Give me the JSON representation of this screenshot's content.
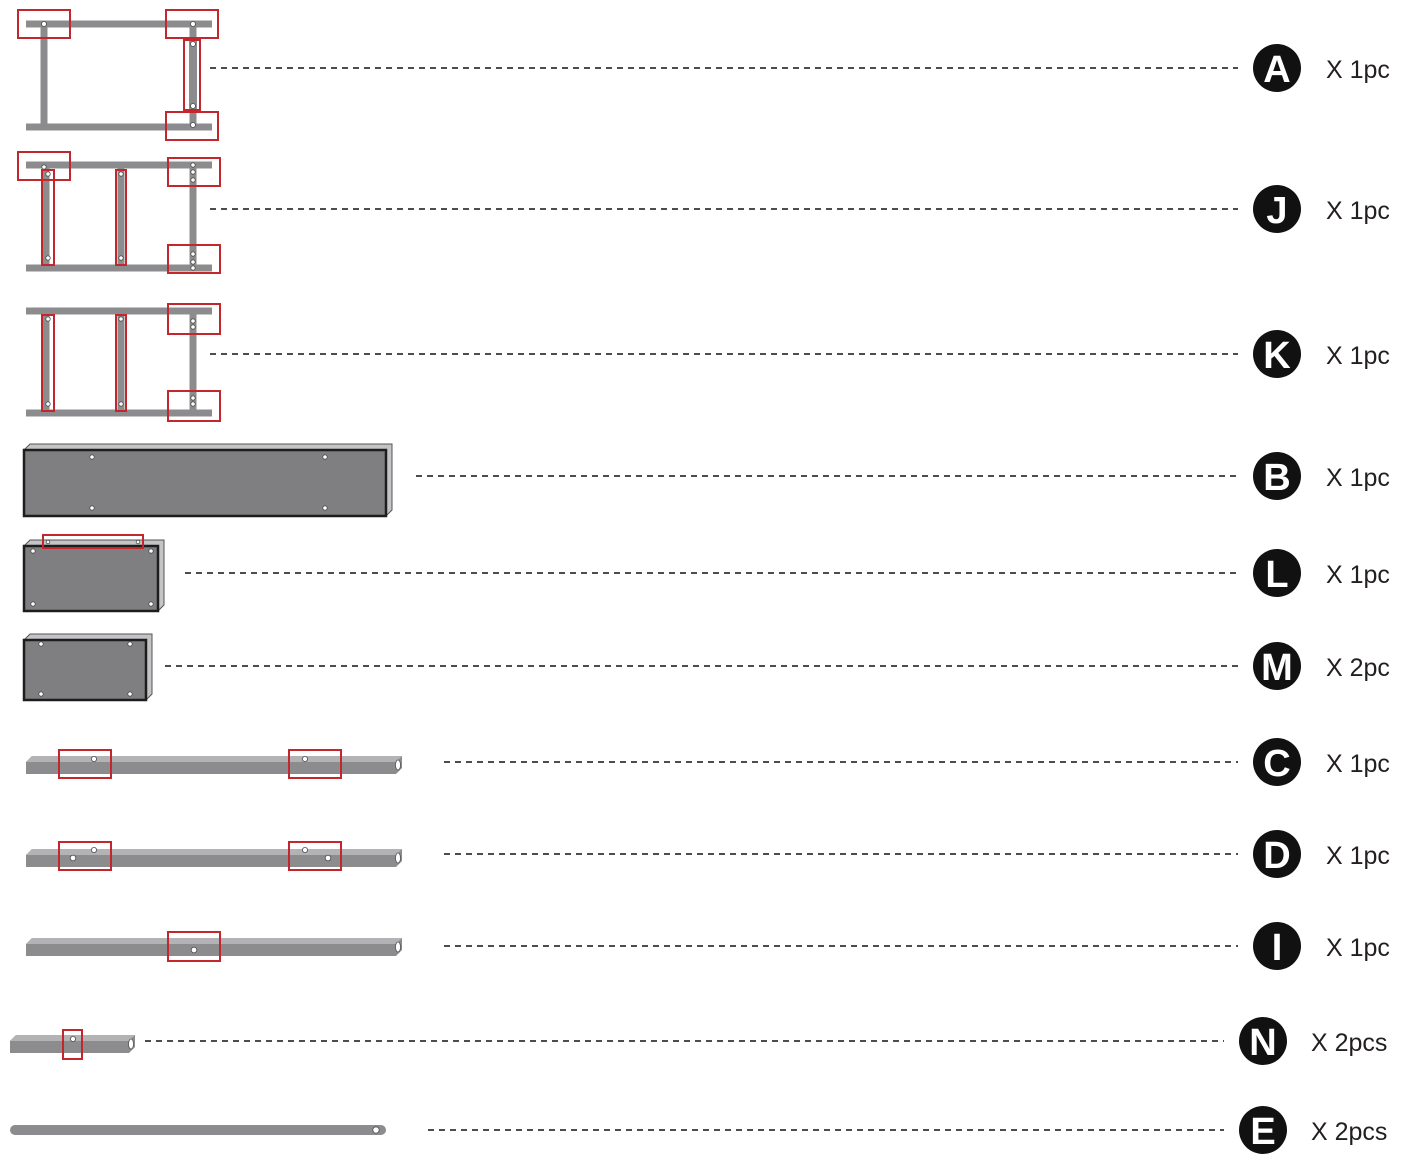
{
  "parts": [
    {
      "id": "A",
      "qty": "X 1pc"
    },
    {
      "id": "J",
      "qty": "X 1pc"
    },
    {
      "id": "K",
      "qty": "X 1pc"
    },
    {
      "id": "B",
      "qty": "X 1pc"
    },
    {
      "id": "L",
      "qty": "X 1pc"
    },
    {
      "id": "M",
      "qty": "X 2pc"
    },
    {
      "id": "C",
      "qty": "X 1pc"
    },
    {
      "id": "D",
      "qty": "X 1pc"
    },
    {
      "id": "I",
      "qty": "X 1pc"
    },
    {
      "id": "N",
      "qty": "X 2pcs"
    },
    {
      "id": "E",
      "qty": "X 2pcs"
    }
  ],
  "colors": {
    "frame": "#8c8c8e",
    "panel": "#7f7f82",
    "highlight": "#c1272d",
    "badge": "#111111"
  }
}
